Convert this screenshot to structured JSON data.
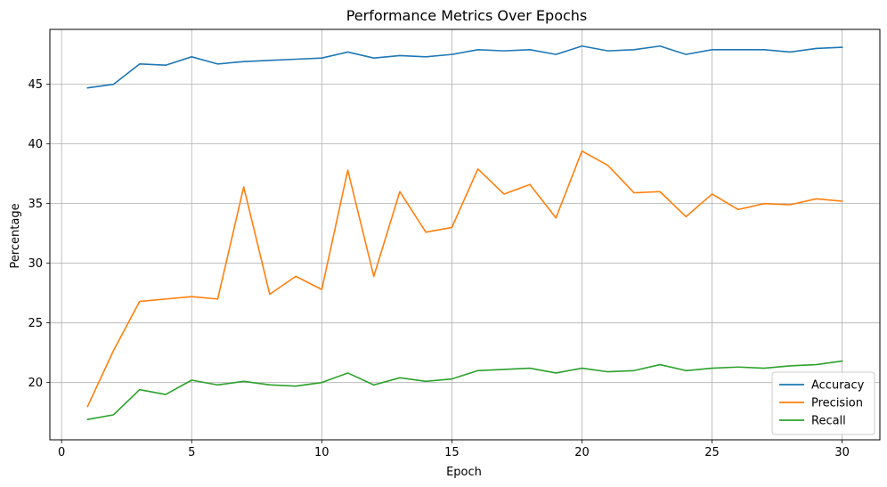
{
  "chart_data": {
    "type": "line",
    "title": "Performance Metrics Over Epochs",
    "xlabel": "Epoch",
    "ylabel": "Percentage",
    "xlim": [
      -0.45,
      31.45
    ],
    "ylim": [
      15.2,
      49.6
    ],
    "xticks": [
      0,
      5,
      10,
      15,
      20,
      25,
      30
    ],
    "yticks": [
      20,
      25,
      30,
      35,
      40,
      45
    ],
    "grid": true,
    "legend_position": "lower right",
    "x": [
      1,
      2,
      3,
      4,
      5,
      6,
      7,
      8,
      9,
      10,
      11,
      12,
      13,
      14,
      15,
      16,
      17,
      18,
      19,
      20,
      21,
      22,
      23,
      24,
      25,
      26,
      27,
      28,
      29,
      30
    ],
    "series": [
      {
        "name": "Accuracy",
        "color": "#1f77b4",
        "values": [
          44.7,
          45.0,
          46.7,
          46.6,
          47.3,
          46.7,
          46.9,
          47.0,
          47.1,
          47.2,
          47.7,
          47.2,
          47.4,
          47.3,
          47.5,
          47.9,
          47.8,
          47.9,
          47.5,
          48.2,
          47.8,
          47.9,
          48.2,
          47.5,
          47.9,
          47.9,
          47.9,
          47.7,
          48.0,
          48.1
        ]
      },
      {
        "name": "Precision",
        "color": "#ff7f0e",
        "values": [
          18.0,
          22.7,
          26.8,
          27.0,
          27.2,
          27.0,
          36.4,
          27.4,
          28.9,
          27.8,
          37.8,
          28.9,
          36.0,
          32.6,
          33.0,
          37.9,
          35.8,
          36.6,
          33.8,
          39.4,
          38.2,
          35.9,
          36.0,
          33.9,
          35.8,
          34.5,
          35.0,
          34.9,
          35.4,
          35.2
        ]
      },
      {
        "name": "Recall",
        "color": "#2ca02c",
        "values": [
          16.9,
          17.3,
          19.4,
          19.0,
          20.2,
          19.8,
          20.1,
          19.8,
          19.7,
          20.0,
          20.8,
          19.8,
          20.4,
          20.1,
          20.3,
          21.0,
          21.1,
          21.2,
          20.8,
          21.2,
          20.9,
          21.0,
          21.5,
          21.0,
          21.2,
          21.3,
          21.2,
          21.4,
          21.5,
          21.8
        ]
      }
    ]
  }
}
